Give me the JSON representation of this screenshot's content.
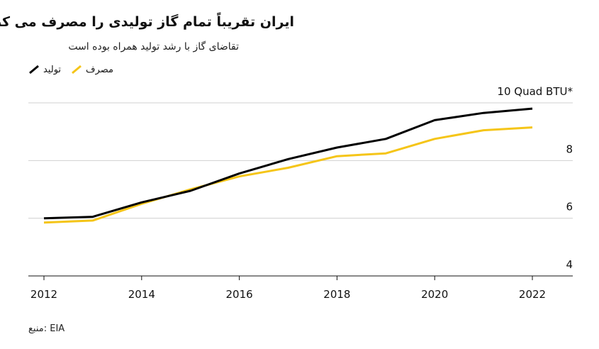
{
  "header": {
    "title": "ایران تقریباً تمام گاز تولیدی را مصرف می کند",
    "subtitle": "تقاضای گاز با رشد تولید همراه بوده است"
  },
  "source": "منبع: EIA",
  "colors": {
    "production": "#000000",
    "consumption": "#F5C518",
    "grid": "#d0d0d0",
    "axis": "#111111"
  },
  "chart_data": {
    "type": "line",
    "title": "ایران تقریباً تمام گاز تولیدی را مصرف می کند",
    "subtitle": "تقاضای گاز با رشد تولید همراه بوده است",
    "unit": "Quad BTU*",
    "x": [
      2012,
      2013,
      2014,
      2015,
      2016,
      2017,
      2018,
      2019,
      2020,
      2021,
      2022
    ],
    "series": [
      {
        "name": "تولید",
        "color": "#000000",
        "values": [
          6.0,
          6.05,
          6.55,
          6.95,
          7.55,
          8.05,
          8.45,
          8.75,
          9.4,
          9.65,
          9.8
        ]
      },
      {
        "name": "مصرف",
        "color": "#F5C518",
        "values": [
          5.85,
          5.92,
          6.5,
          7.0,
          7.45,
          7.75,
          8.15,
          8.25,
          8.75,
          9.05,
          9.15
        ]
      }
    ],
    "xticks": [
      2012,
      2014,
      2016,
      2018,
      2020,
      2022
    ],
    "yticks": [
      4,
      6,
      8,
      10
    ],
    "ylim": [
      4,
      10
    ],
    "xlim": [
      2012,
      2022
    ],
    "grid": true,
    "legend_position": "top-left"
  }
}
